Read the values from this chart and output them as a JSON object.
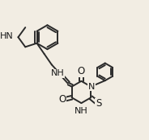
{
  "bg_color": "#f2ede3",
  "bond_color": "#2a2a2a",
  "bond_lw": 1.4,
  "font_size": 8.0,
  "font_color": "#1a1a1a",
  "figsize": [
    1.84,
    1.74
  ],
  "dpi": 100,
  "xlim": [
    0.0,
    10.0
  ],
  "ylim": [
    0.0,
    9.5
  ]
}
